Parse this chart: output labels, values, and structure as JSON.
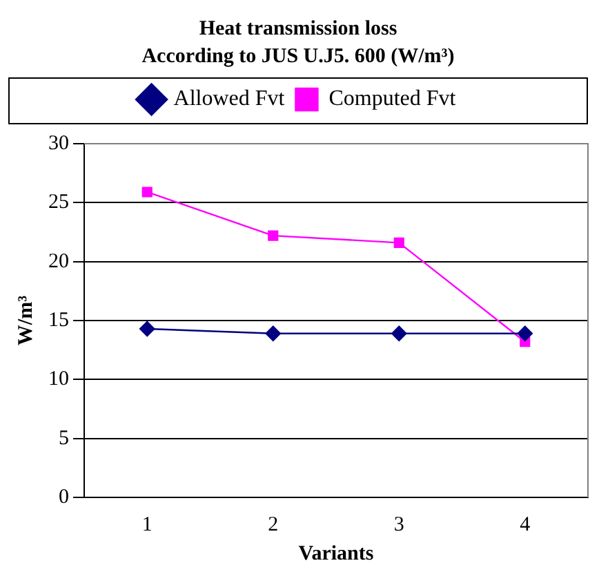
{
  "chart_data": {
    "type": "line",
    "title": "Heat transmission loss",
    "subtitle": "According to JUS U.J5. 600 (W/m³)",
    "xlabel": "Variants",
    "ylabel": "W/m³",
    "categories": [
      "1",
      "2",
      "3",
      "4"
    ],
    "series": [
      {
        "name": "Allowed Fvt",
        "color": "#000080",
        "values": [
          14.3,
          13.9,
          13.9,
          13.9
        ],
        "marker": "diamond"
      },
      {
        "name": "Computed Fvt",
        "color": "#ff00ff",
        "values": [
          25.9,
          22.2,
          21.6,
          13.2
        ],
        "marker": "square"
      }
    ],
    "ylim": [
      0,
      30
    ],
    "yticks": [
      0,
      5,
      10,
      15,
      20,
      25,
      30
    ],
    "grid": "y",
    "legend": "top",
    "line_style": "solid"
  }
}
